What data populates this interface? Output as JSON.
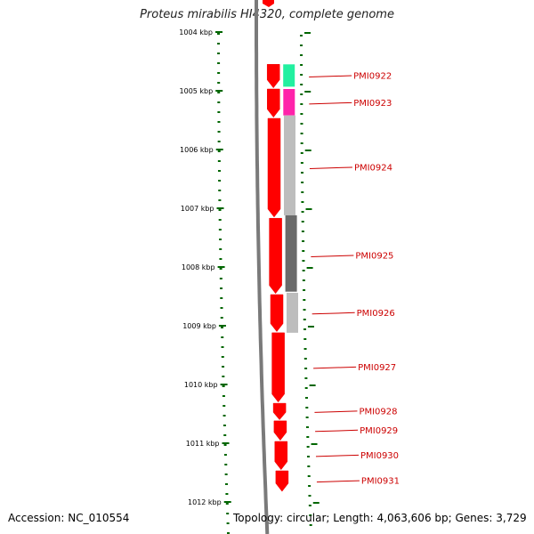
{
  "title": "Proteus mirabilis HI4320, complete genome",
  "footer": {
    "accession": "Accession: NC_010554",
    "topology": "Topology: circular; Length: 4,063,606 bp; Genes: 3,729"
  },
  "ruler": {
    "unit": "kbp",
    "labels": [
      "1004 kbp",
      "1005 kbp",
      "1006 kbp",
      "1007 kbp",
      "1008 kbp",
      "1009 kbp",
      "1010 kbp",
      "1011 kbp",
      "1012 kbp"
    ]
  },
  "colors": {
    "gene_red": "#ff0000",
    "backbone": "#7a7a7a",
    "tick_green": "#006600",
    "label_red": "#cc0000",
    "feature_green": "#22f0a0",
    "feature_magenta": "#ff22aa",
    "feature_lightgray": "#bdbdbd",
    "feature_darkgray": "#6a6a6a"
  },
  "genes": [
    {
      "label": "PMI0922",
      "start_kbp": 1004.55,
      "end_kbp": 1004.95
    },
    {
      "label": "PMI0923",
      "start_kbp": 1004.97,
      "end_kbp": 1005.45
    },
    {
      "label": "PMI0924",
      "start_kbp": 1005.47,
      "end_kbp": 1007.15
    },
    {
      "label": "PMI0925",
      "start_kbp": 1007.17,
      "end_kbp": 1008.45
    },
    {
      "label": "PMI0926",
      "start_kbp": 1008.47,
      "end_kbp": 1009.1
    },
    {
      "label": "PMI0927",
      "start_kbp": 1009.12,
      "end_kbp": 1010.3
    },
    {
      "label": "PMI0928",
      "start_kbp": 1010.32,
      "end_kbp": 1010.6
    },
    {
      "label": "PMI0929",
      "start_kbp": 1010.62,
      "end_kbp": 1010.95
    },
    {
      "label": "PMI0930",
      "start_kbp": 1010.97,
      "end_kbp": 1011.45
    },
    {
      "label": "PMI0931",
      "start_kbp": 1011.47,
      "end_kbp": 1011.82
    }
  ],
  "features": [
    {
      "start_kbp": 1004.55,
      "end_kbp": 1004.93,
      "color": "#22f0a0"
    },
    {
      "start_kbp": 1004.97,
      "end_kbp": 1005.42,
      "color": "#ff22aa"
    },
    {
      "start_kbp": 1005.42,
      "end_kbp": 1007.12,
      "color": "#bdbdbd"
    },
    {
      "start_kbp": 1007.12,
      "end_kbp": 1008.42,
      "color": "#6a6a6a"
    },
    {
      "start_kbp": 1008.44,
      "end_kbp": 1009.12,
      "color": "#bdbdbd"
    }
  ]
}
